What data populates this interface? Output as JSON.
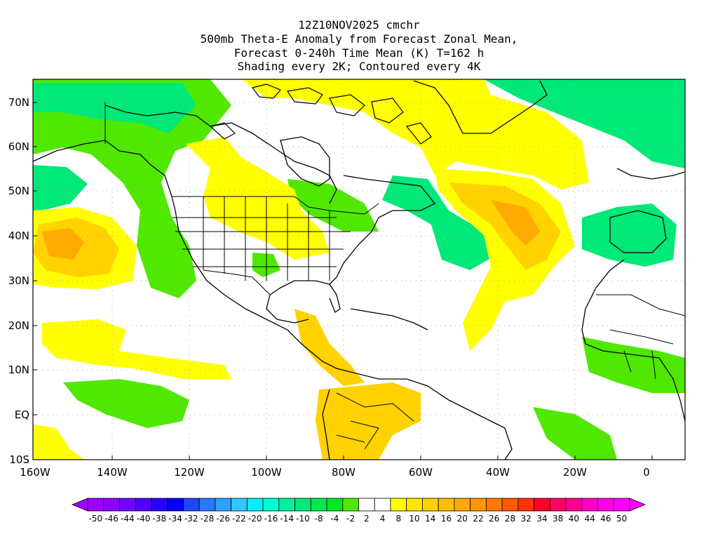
{
  "titles": {
    "line1": "12Z10NOV2025 cmchr",
    "line2": "500mb Theta-E Anomaly from Forecast Zonal Mean,",
    "line3": "Forecast 0-240h Time Mean (K) T=162 h",
    "line4": "Shading every 2K; Contoured every 4K"
  },
  "axes": {
    "lat_labels": [
      "70N",
      "60N",
      "50N",
      "40N",
      "30N",
      "20N",
      "10N",
      "EQ",
      "10S"
    ],
    "lon_labels": [
      "160W",
      "140W",
      "120W",
      "100W",
      "80W",
      "60W",
      "40W",
      "20W",
      "0"
    ]
  },
  "colorbar": {
    "labels": [
      "-50",
      "-46",
      "-44",
      "-40",
      "-38",
      "-34",
      "-32",
      "-28",
      "-26",
      "-22",
      "-20",
      "-16",
      "-14",
      "-10",
      "-8",
      "-4",
      "-2",
      "2",
      "4",
      "8",
      "10",
      "14",
      "16",
      "20",
      "22",
      "26",
      "28",
      "32",
      "34",
      "38",
      "40",
      "44",
      "46",
      "50"
    ],
    "colors": [
      "#a000ff",
      "#8c00ff",
      "#7300ff",
      "#5000ff",
      "#2800ff",
      "#0000ff",
      "#1e46ff",
      "#2a78ff",
      "#30a0ff",
      "#30c8ff",
      "#00f0ff",
      "#00ffd0",
      "#00f0a0",
      "#00e878",
      "#00e850",
      "#00e828",
      "#50e800",
      "#ffffff",
      "#ffffff",
      "#ffff00",
      "#ffe600",
      "#ffd200",
      "#ffbe00",
      "#ffaa00",
      "#ff9600",
      "#ff7800",
      "#ff5a00",
      "#ff3200",
      "#ff0028",
      "#ff0064",
      "#ff0096",
      "#ff00c8",
      "#ff00e6",
      "#ff00ff"
    ]
  },
  "map_features": {
    "land_outline_color": "#000000",
    "grid_color": "#aaaaaa",
    "anomaly_fill_colors": {
      "green": "#50e800",
      "teal": "#00e878",
      "yellow": "#ffff00",
      "gold": "#ffd200",
      "orange": "#ffaa00",
      "deep_orange": "#ff9000"
    }
  }
}
